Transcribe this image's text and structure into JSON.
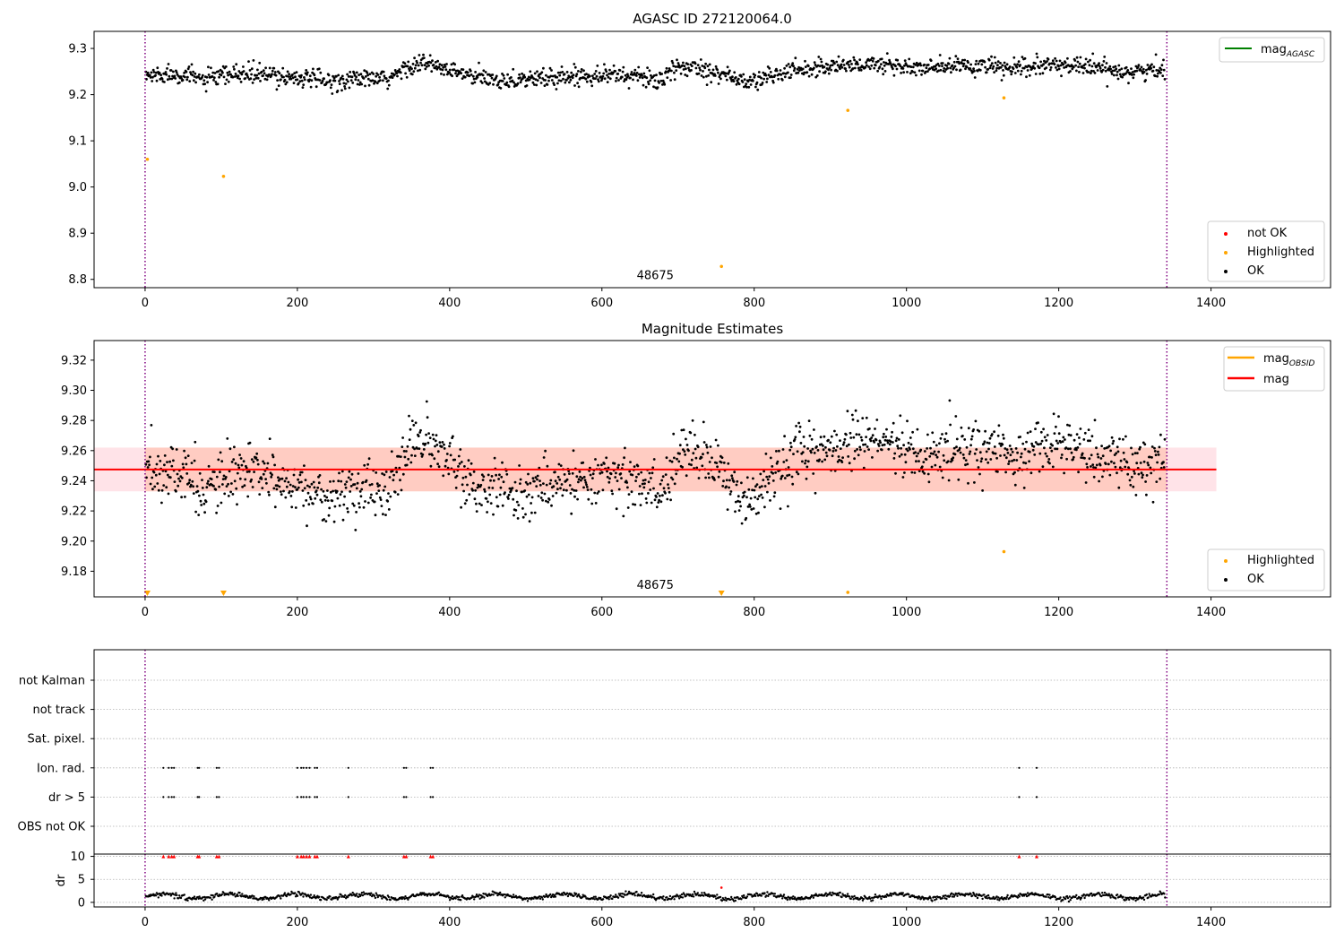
{
  "chart_data": [
    {
      "type": "scatter",
      "title": "AGASC ID 272120064.0",
      "xlabel": "",
      "ylabel": "",
      "xlim": [
        -67,
        1557
      ],
      "ylim": [
        8.782,
        9.337
      ],
      "xticks": [
        0,
        200,
        400,
        600,
        800,
        1000,
        1200,
        1400
      ],
      "yticks": [
        8.8,
        8.9,
        9.0,
        9.1,
        9.2,
        9.3
      ],
      "ytick_labels": [
        "8.8",
        "8.9",
        "9.0",
        "9.1",
        "9.2",
        "9.3"
      ],
      "vlines": [
        0,
        1342
      ],
      "annotation": "48675",
      "legend_lines": [
        {
          "label": "mag",
          "sub": "AGASC",
          "color": "#008000"
        }
      ],
      "legend_points": [
        {
          "label": "not OK",
          "color": "#ff0000"
        },
        {
          "label": "Highlighted",
          "color": "#ffa500"
        },
        {
          "label": "OK",
          "color": "#000000"
        }
      ],
      "ok_trend": [
        [
          0,
          9.24
        ],
        [
          40,
          9.247
        ],
        [
          80,
          9.232
        ],
        [
          120,
          9.245
        ],
        [
          160,
          9.242
        ],
        [
          200,
          9.238
        ],
        [
          240,
          9.228
        ],
        [
          280,
          9.235
        ],
        [
          320,
          9.232
        ],
        [
          345,
          9.262
        ],
        [
          365,
          9.268
        ],
        [
          400,
          9.252
        ],
        [
          440,
          9.235
        ],
        [
          480,
          9.232
        ],
        [
          520,
          9.235
        ],
        [
          560,
          9.24
        ],
        [
          600,
          9.245
        ],
        [
          640,
          9.24
        ],
        [
          680,
          9.232
        ],
        [
          700,
          9.258
        ],
        [
          720,
          9.262
        ],
        [
          760,
          9.245
        ],
        [
          790,
          9.225
        ],
        [
          820,
          9.24
        ],
        [
          860,
          9.255
        ],
        [
          900,
          9.262
        ],
        [
          940,
          9.265
        ],
        [
          980,
          9.265
        ],
        [
          1020,
          9.255
        ],
        [
          1060,
          9.262
        ],
        [
          1100,
          9.262
        ],
        [
          1140,
          9.255
        ],
        [
          1180,
          9.262
        ],
        [
          1220,
          9.265
        ],
        [
          1260,
          9.255
        ],
        [
          1300,
          9.25
        ],
        [
          1342,
          9.255
        ]
      ],
      "ok_scatter": 0.01,
      "highlighted": [
        {
          "x": 3,
          "y": 9.06
        },
        {
          "x": 103,
          "y": 9.023
        },
        {
          "x": 757,
          "y": 8.828
        },
        {
          "x": 923,
          "y": 9.166
        },
        {
          "x": 1128,
          "y": 9.193
        }
      ],
      "not_ok": []
    },
    {
      "type": "scatter",
      "title": "Magnitude Estimates",
      "xlabel": "",
      "ylabel": "",
      "xlim": [
        -67,
        1557
      ],
      "ylim": [
        9.163,
        9.333
      ],
      "xticks": [
        0,
        200,
        400,
        600,
        800,
        1000,
        1200,
        1400
      ],
      "yticks": [
        9.18,
        9.2,
        9.22,
        9.24,
        9.26,
        9.28,
        9.3,
        9.32
      ],
      "ytick_labels": [
        "9.18",
        "9.20",
        "9.22",
        "9.24",
        "9.26",
        "9.28",
        "9.30",
        "9.32"
      ],
      "vlines": [
        0,
        1342
      ],
      "annotation": "48675",
      "mag": 9.2475,
      "band_inner": [
        9.233,
        9.262
      ],
      "band_outer": [
        9.233,
        9.262
      ],
      "band_x": [
        -67,
        1407
      ],
      "legend_lines": [
        {
          "label": "mag",
          "sub": "OBSID",
          "color": "#ffa500"
        },
        {
          "label": "mag",
          "sub": "",
          "color": "#ff0000"
        }
      ],
      "legend_points": [
        {
          "label": "Highlighted",
          "color": "#ffa500"
        },
        {
          "label": "OK",
          "color": "#000000"
        }
      ],
      "ok_trend": [
        [
          0,
          9.245
        ],
        [
          40,
          9.247
        ],
        [
          80,
          9.232
        ],
        [
          120,
          9.245
        ],
        [
          160,
          9.242
        ],
        [
          200,
          9.238
        ],
        [
          240,
          9.228
        ],
        [
          280,
          9.235
        ],
        [
          320,
          9.232
        ],
        [
          345,
          9.262
        ],
        [
          365,
          9.268
        ],
        [
          400,
          9.252
        ],
        [
          440,
          9.235
        ],
        [
          480,
          9.232
        ],
        [
          520,
          9.235
        ],
        [
          560,
          9.24
        ],
        [
          600,
          9.245
        ],
        [
          640,
          9.24
        ],
        [
          680,
          9.232
        ],
        [
          700,
          9.258
        ],
        [
          720,
          9.262
        ],
        [
          760,
          9.245
        ],
        [
          790,
          9.225
        ],
        [
          820,
          9.24
        ],
        [
          860,
          9.255
        ],
        [
          900,
          9.262
        ],
        [
          940,
          9.265
        ],
        [
          980,
          9.265
        ],
        [
          1020,
          9.255
        ],
        [
          1060,
          9.262
        ],
        [
          1100,
          9.262
        ],
        [
          1140,
          9.255
        ],
        [
          1180,
          9.262
        ],
        [
          1220,
          9.265
        ],
        [
          1260,
          9.255
        ],
        [
          1300,
          9.25
        ],
        [
          1342,
          9.255
        ]
      ],
      "ok_scatter": 0.009,
      "highlighted": [
        {
          "x": 923,
          "y": 9.166
        },
        {
          "x": 1128,
          "y": 9.193
        }
      ],
      "off_scale_markers": [
        3,
        103,
        757
      ]
    },
    {
      "type": "scatter",
      "title": "",
      "xlim": [
        -67,
        1557
      ],
      "xticks": [
        0,
        200,
        400,
        600,
        800,
        1000,
        1200,
        1400
      ],
      "vlines": [
        0,
        1342
      ],
      "flag_labels": [
        "not Kalman",
        "not track",
        "Sat. pixel.",
        "Ion. rad.",
        "dr > 5",
        "OBS not OK"
      ],
      "flag_points": {
        "Ion. rad.": [
          24,
          31,
          35,
          38,
          69,
          71,
          94,
          97,
          200,
          205,
          208,
          212,
          216,
          223,
          226,
          267,
          340,
          343,
          375,
          378,
          1148,
          1171
        ],
        "dr > 5": [
          24,
          31,
          35,
          38,
          69,
          71,
          94,
          97,
          200,
          205,
          208,
          212,
          216,
          223,
          226,
          267,
          340,
          343,
          375,
          378,
          1148,
          1171
        ]
      },
      "dr_ylabel": "dr",
      "dr_yticks": [
        0,
        5,
        10
      ],
      "dr_ylim": [
        -1,
        10.5
      ],
      "dr_clipped_x": [
        24,
        31,
        35,
        38,
        69,
        71,
        94,
        97,
        200,
        205,
        208,
        212,
        216,
        223,
        226,
        267,
        340,
        343,
        375,
        378,
        1148,
        1171
      ],
      "dr_outlier": {
        "x": 757,
        "y": 3.2
      },
      "dr_baseline": 1.3
    }
  ]
}
